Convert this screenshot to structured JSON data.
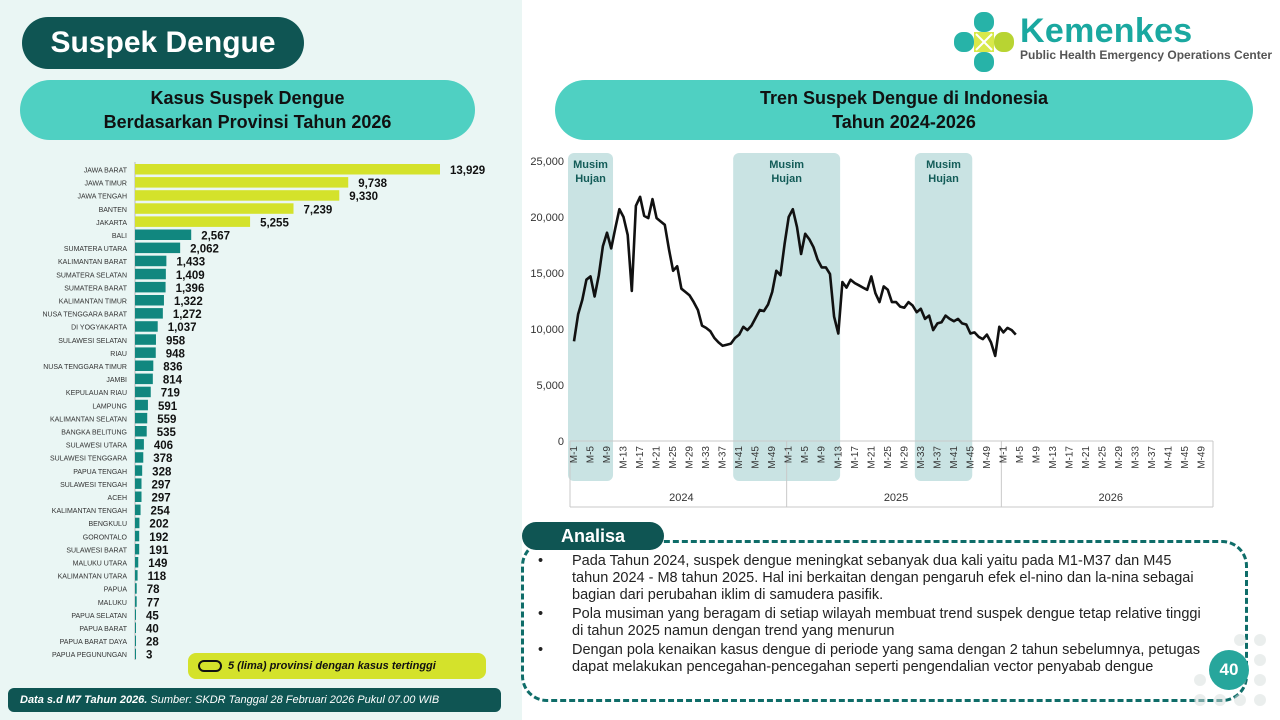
{
  "header": {
    "title": "Suspek Dengue",
    "logo_name": "Kemenkes",
    "logo_subtitle": "Public Health Emergency Operations Center"
  },
  "left_panel": {
    "title_line1": "Kasus Suspek Dengue",
    "title_line2": "Berdasarkan Provinsi Tahun 2026",
    "legend_text": "5 (lima) provinsi dengan kasus tertinggi",
    "footer_bold": "Data s.d M7 Tahun 2026.",
    "footer_text": " Sumber: SKDR Tanggal 28 Februari 2026 Pukul 07.00 WIB"
  },
  "right_panel": {
    "title_line1": "Tren Suspek Dengue di Indonesia",
    "title_line2": "Tahun 2024-2026"
  },
  "colors": {
    "highlight_bar": "#d4e22b",
    "normal_bar": "#11877f",
    "band": "#c9e3e3",
    "dark_teal": "#0f5553",
    "pill": "#4fd0c2"
  },
  "chart_data": [
    {
      "type": "bar",
      "orientation": "horizontal",
      "categories": [
        "JAWA BARAT",
        "JAWA TIMUR",
        "JAWA TENGAH",
        "BANTEN",
        "JAKARTA",
        "BALI",
        "SUMATERA UTARA",
        "KALIMANTAN BARAT",
        "SUMATERA SELATAN",
        "SUMATERA BARAT",
        "KALIMANTAN TIMUR",
        "NUSA TENGGARA BARAT",
        "DI YOGYAKARTA",
        "SULAWESI SELATAN",
        "RIAU",
        "NUSA TENGGARA TIMUR",
        "JAMBI",
        "KEPULAUAN RIAU",
        "LAMPUNG",
        "KALIMANTAN SELATAN",
        "BANGKA BELITUNG",
        "SULAWESI UTARA",
        "SULAWESI TENGGARA",
        "PAPUA TENGAH",
        "SULAWESI TENGAH",
        "ACEH",
        "KALIMANTAN TENGAH",
        "BENGKULU",
        "GORONTALO",
        "SULAWESI BARAT",
        "MALUKU UTARA",
        "KALIMANTAN UTARA",
        "PAPUA",
        "MALUKU",
        "PAPUA SELATAN",
        "PAPUA BARAT",
        "PAPUA BARAT DAYA",
        "PAPUA PEGUNUNGAN"
      ],
      "values": [
        13929,
        9738,
        9330,
        7239,
        5255,
        2567,
        2062,
        1433,
        1409,
        1396,
        1322,
        1272,
        1037,
        958,
        948,
        836,
        814,
        719,
        591,
        559,
        535,
        406,
        378,
        328,
        297,
        297,
        254,
        202,
        192,
        191,
        149,
        118,
        78,
        77,
        45,
        40,
        28,
        3
      ],
      "value_labels": [
        "13,929",
        "9,738",
        "9,330",
        "7,239",
        "5,255",
        "2,567",
        "2,062",
        "1,433",
        "1,409",
        "1,396",
        "1,322",
        "1,272",
        "1,037",
        "958",
        "948",
        "836",
        "814",
        "719",
        "591",
        "559",
        "535",
        "406",
        "378",
        "328",
        "297",
        "297",
        "254",
        "202",
        "192",
        "191",
        "149",
        "118",
        "78",
        "77",
        "45",
        "40",
        "28",
        "3"
      ],
      "highlight_top": 5
    },
    {
      "type": "line",
      "y_ticks": [
        "25,000",
        "20,000",
        "15,000",
        "10,000",
        "5,000",
        "0"
      ],
      "ylim": [
        0,
        25000
      ],
      "week_labels": [
        "M-1",
        "M-5",
        "M-9",
        "M-13",
        "M-17",
        "M-21",
        "M-25",
        "M-29",
        "M-33",
        "M-37",
        "M-41",
        "M-45",
        "M-49"
      ],
      "years": [
        "2024",
        "2025",
        "2026"
      ],
      "weeks_per_year": 52,
      "bands": [
        {
          "label_line1": "Musim",
          "label_line2": "Hujan",
          "from_week": 0,
          "to_week": 8
        },
        {
          "label_line1": "Musim",
          "label_line2": "Hujan",
          "from_week": 40,
          "to_week": 63
        },
        {
          "label_line1": "Musim",
          "label_line2": "Hujan",
          "from_week": 84,
          "to_week": 95
        }
      ],
      "series": [
        {
          "values": [
            8900,
            11300,
            12600,
            14400,
            14700,
            12900,
            14800,
            17400,
            18600,
            17200,
            19000,
            20700,
            20000,
            18400,
            13400,
            21000,
            21800,
            20100,
            19900,
            21600,
            19900,
            19600,
            19300,
            17100,
            15200,
            15600,
            13600,
            13300,
            13000,
            12400,
            11700,
            10300,
            10100,
            9800,
            9200,
            8800,
            8500,
            8600,
            8700,
            9200,
            9500,
            10200,
            9900,
            10300,
            11000,
            11700,
            11600,
            12200,
            13300,
            15200,
            14800,
            17600,
            20000,
            20700,
            19100,
            16700,
            18500,
            18000,
            17300,
            16200,
            15500,
            15500,
            14900,
            11100,
            9600,
            14200,
            13700,
            14400,
            14100,
            13900,
            13700,
            13500,
            14700,
            13200,
            12400,
            13800,
            13500,
            12400,
            12400,
            12000,
            11900,
            12400,
            12100,
            11500,
            11800,
            10900,
            11200,
            9900,
            10500,
            10600,
            11200,
            10900,
            10700,
            10900,
            10500,
            10400,
            9600,
            9700,
            9300,
            9100,
            9500,
            8800,
            7600,
            10200,
            9700,
            10100,
            9900,
            9500
          ]
        }
      ]
    }
  ],
  "analysis": {
    "title": "Analisa",
    "points": [
      "Pada Tahun 2024, suspek dengue meningkat sebanyak dua kali yaitu pada M1-M37 dan M45 tahun 2024 - M8 tahun 2025. Hal ini berkaitan dengan pengaruh efek el-nino dan la-nina sebagai bagian dari perubahan iklim di samudera pasifik.",
      "Pola musiman yang beragam di setiap wilayah membuat trend suspek dengue tetap relative tinggi di tahun 2025 namun dengan trend yang menurun",
      "Dengan pola kenaikan kasus dengue di periode yang sama dengan 2 tahun sebelumnya, petugas dapat melakukan pencegahan-pencegahan seperti pengendalian vector penyabab dengue"
    ]
  },
  "page_number": "40"
}
